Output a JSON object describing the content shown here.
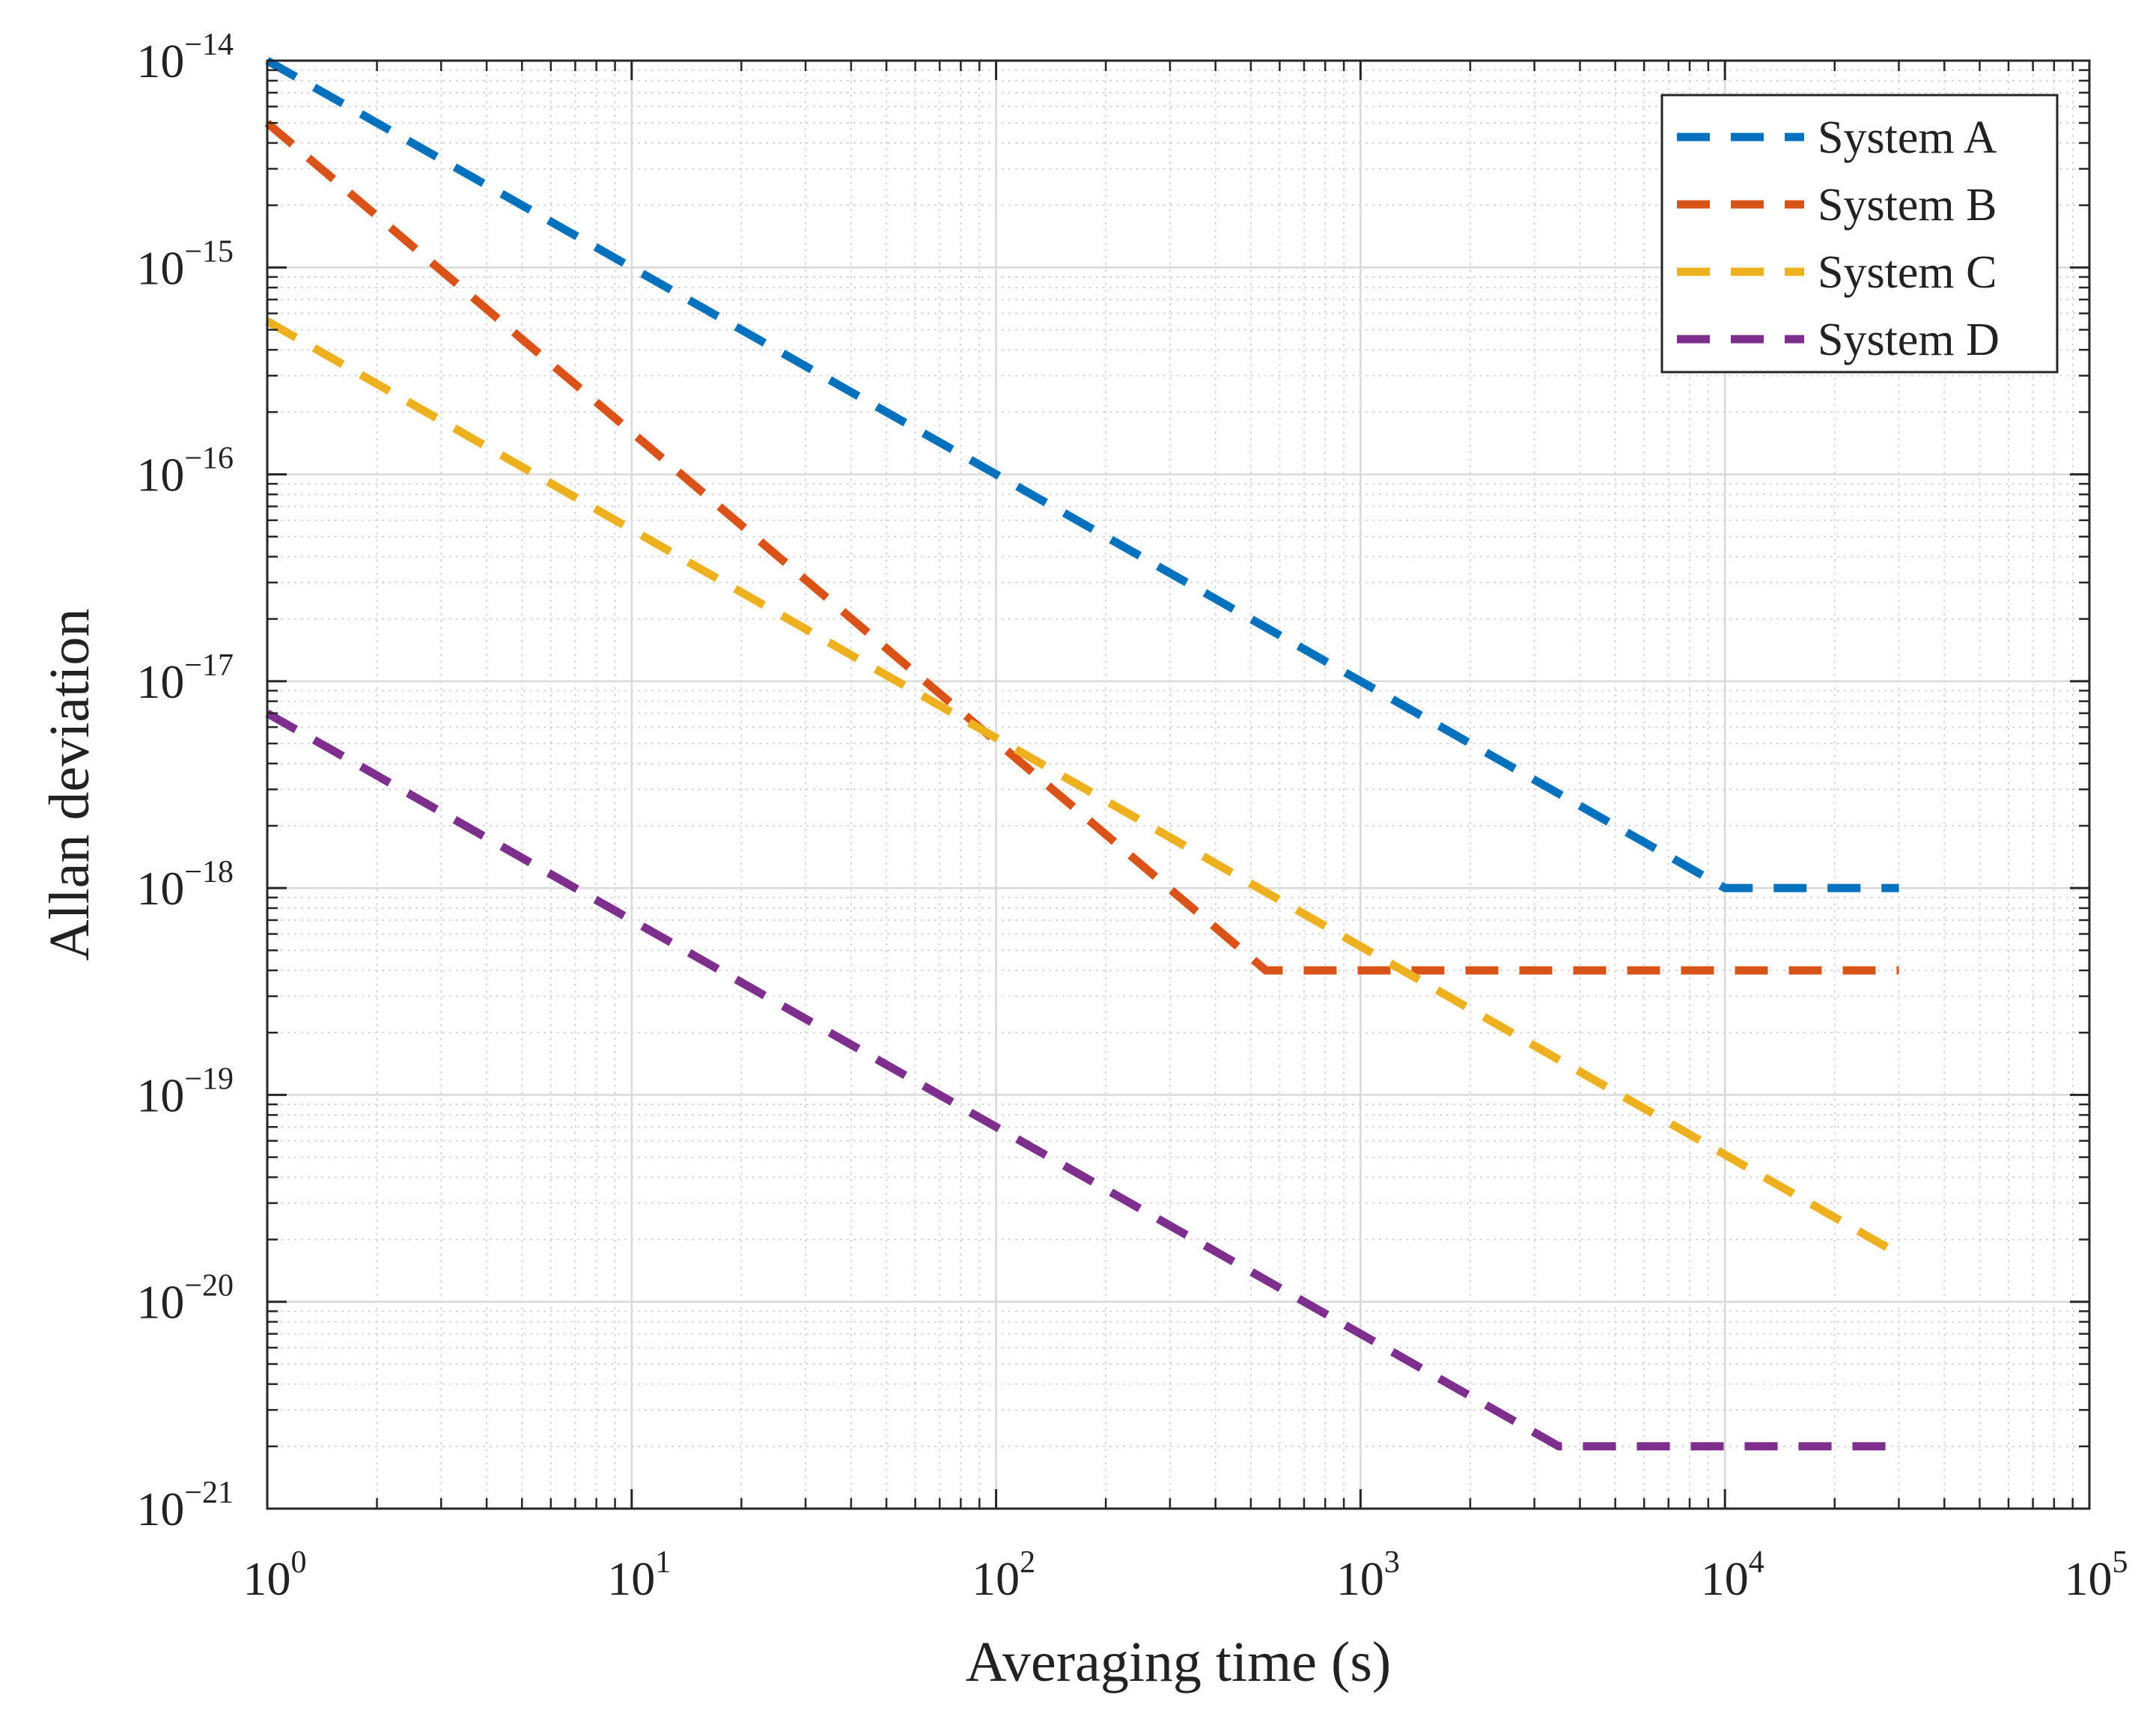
{
  "chart_data": {
    "type": "line",
    "title": "",
    "xlabel": "Averaging time (s)",
    "ylabel": "Allan deviation",
    "xscale": "log",
    "yscale": "log",
    "xlim": [
      1,
      100000
    ],
    "ylim": [
      1e-21,
      1e-14
    ],
    "x_ticks": [
      {
        "base": "10",
        "exp": "0"
      },
      {
        "base": "10",
        "exp": "1"
      },
      {
        "base": "10",
        "exp": "2"
      },
      {
        "base": "10",
        "exp": "3"
      },
      {
        "base": "10",
        "exp": "4"
      },
      {
        "base": "10",
        "exp": "5"
      }
    ],
    "y_ticks": [
      {
        "base": "10",
        "exp": "−14"
      },
      {
        "base": "10",
        "exp": "−15"
      },
      {
        "base": "10",
        "exp": "−16"
      },
      {
        "base": "10",
        "exp": "−17"
      },
      {
        "base": "10",
        "exp": "−18"
      },
      {
        "base": "10",
        "exp": "−19"
      },
      {
        "base": "10",
        "exp": "−20"
      },
      {
        "base": "10",
        "exp": "−21"
      }
    ],
    "grid": true,
    "minor_grid": true,
    "legend_position": "top-right",
    "series": [
      {
        "name": "System  A",
        "color": "#0072BD",
        "style": "dashed",
        "points": [
          [
            1,
            1e-14
          ],
          [
            10000,
            1e-18
          ],
          [
            30000,
            1e-18
          ]
        ]
      },
      {
        "name": "System  B",
        "color": "#D95319",
        "style": "dashed",
        "points": [
          [
            1,
            5e-15
          ],
          [
            550,
            4e-19
          ],
          [
            30000,
            4e-19
          ]
        ]
      },
      {
        "name": "System  C",
        "color": "#EDB120",
        "style": "dashed",
        "points": [
          [
            1,
            5.5e-16
          ],
          [
            30000,
            1.7e-20
          ]
        ]
      },
      {
        "name": "System  D",
        "color": "#7E2F8E",
        "style": "dashed",
        "points": [
          [
            1,
            7e-18
          ],
          [
            3500,
            2e-21
          ],
          [
            30000,
            2e-21
          ]
        ]
      }
    ]
  }
}
